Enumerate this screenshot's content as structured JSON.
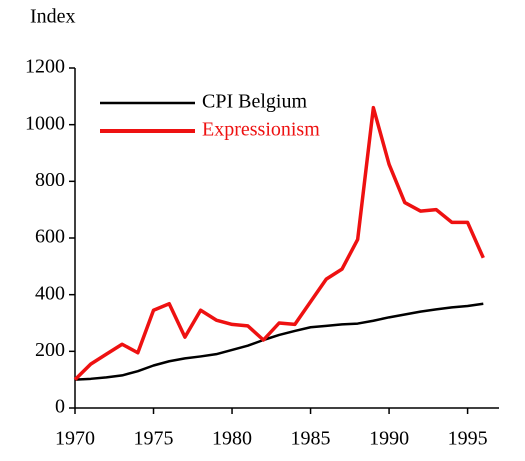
{
  "chart_data": {
    "type": "line",
    "y_label": "Index",
    "x": [
      1970,
      1971,
      1972,
      1973,
      1974,
      1975,
      1976,
      1977,
      1978,
      1979,
      1980,
      1981,
      1982,
      1983,
      1984,
      1985,
      1986,
      1987,
      1988,
      1989,
      1990,
      1991,
      1992,
      1993,
      1994,
      1995,
      1996
    ],
    "series": [
      {
        "name": "CPI Belgium",
        "color": "#000000",
        "values": [
          100,
          103,
          108,
          115,
          130,
          150,
          165,
          175,
          182,
          190,
          205,
          220,
          240,
          258,
          272,
          285,
          290,
          295,
          298,
          308,
          320,
          330,
          340,
          348,
          355,
          360,
          368
        ]
      },
      {
        "name": "Expressionism",
        "color": "#ee1111",
        "values": [
          100,
          155,
          190,
          225,
          195,
          345,
          368,
          250,
          345,
          310,
          295,
          290,
          240,
          300,
          295,
          375,
          455,
          490,
          595,
          1060,
          860,
          725,
          695,
          700,
          655,
          655,
          530
        ]
      }
    ],
    "xlim": [
      1970,
      1997
    ],
    "xticks": [
      1970,
      1975,
      1980,
      1985,
      1990,
      1995
    ],
    "ylim": [
      0,
      1200
    ],
    "yticks": [
      0,
      200,
      400,
      600,
      800,
      1000,
      1200
    ],
    "legend": "upper left"
  }
}
